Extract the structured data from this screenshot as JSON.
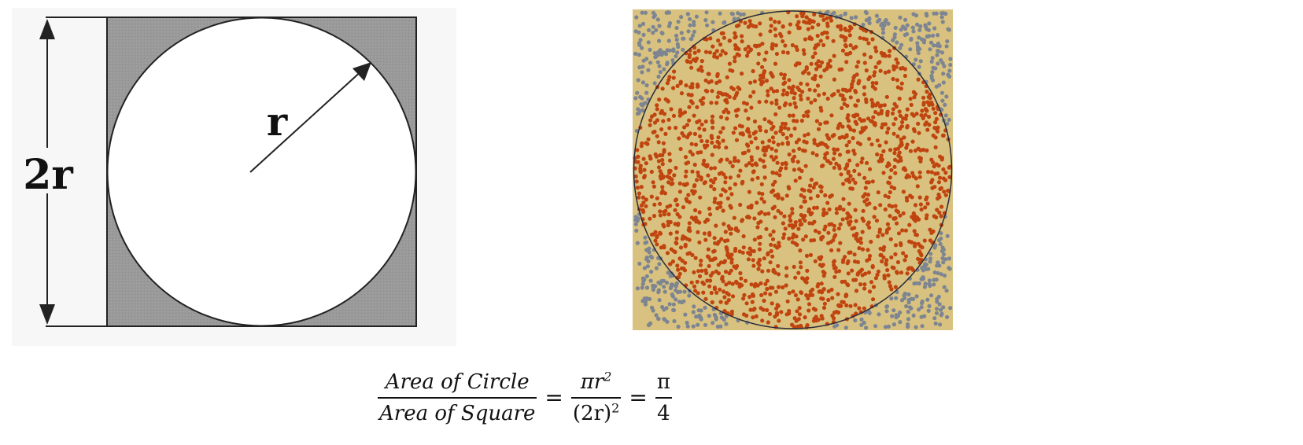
{
  "left_diagram": {
    "side_label": "2r",
    "radius_label": "r"
  },
  "right_diagram": {
    "colors": {
      "background": "#d9c27f",
      "inside_points": "#c0440f",
      "outside_points": "#7d8592",
      "circle_stroke": "#2b2b3a"
    }
  },
  "formula": {
    "lhs_num": "Area of Circle",
    "lhs_den": "Area of Square",
    "mid_num": "πr",
    "mid_num_exp": "2",
    "mid_den": "(2r)",
    "mid_den_exp": "2",
    "rhs_num": "π",
    "rhs_den": "4",
    "eq1": "=",
    "eq2": "="
  }
}
